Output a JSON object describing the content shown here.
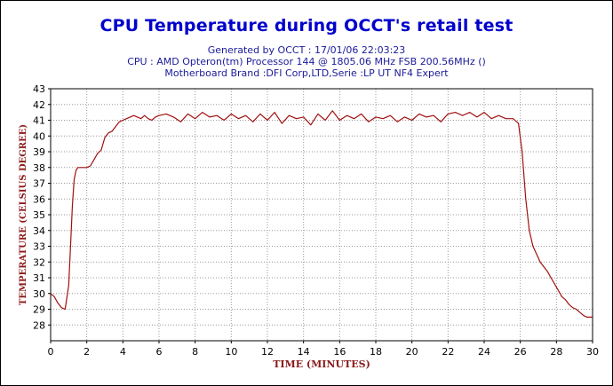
{
  "title": "CPU Temperature during OCCT's retail test",
  "subtitle_lines": [
    "Generated by OCCT : 17/01/06 22:03:23",
    "CPU : AMD Opteron(tm) Processor 144    @ 1805.06 MHz FSB 200.56MHz ()",
    "Motherboard Brand :DFI Corp,LTD,Serie :LP UT NF4 Expert"
  ],
  "colors": {
    "title": "#0000cc",
    "subtitle": "#1a1a99",
    "axis_label": "#8b1a1a",
    "line": "#a01010",
    "grid": "#999999"
  },
  "chart_data": {
    "type": "line",
    "title": "CPU Temperature during OCCT's retail test",
    "xlabel": "TIME (MINUTES)",
    "ylabel": "TEMPERATURE (CELSIUS DEGREE)",
    "xlim": [
      0,
      30
    ],
    "ylim": [
      27,
      43
    ],
    "xticks": [
      0,
      2,
      4,
      6,
      8,
      10,
      12,
      14,
      16,
      18,
      20,
      22,
      24,
      26,
      28,
      30
    ],
    "yticks": [
      28,
      29,
      30,
      31,
      32,
      33,
      34,
      35,
      36,
      37,
      38,
      39,
      40,
      41,
      42,
      43
    ],
    "grid": true,
    "grid_style": "dotted",
    "series": [
      {
        "x": [
          0,
          0.2,
          0.4,
          0.6,
          0.8,
          1.0,
          1.1,
          1.2,
          1.3,
          1.4,
          1.5,
          1.6,
          1.8,
          2.0,
          2.2,
          2.4,
          2.6,
          2.8,
          3.0,
          3.2,
          3.4,
          3.6,
          3.8,
          4.0,
          4.2,
          4.4,
          4.6,
          4.8,
          5.0,
          5.2,
          5.4,
          5.6,
          5.8,
          6.0,
          6.4,
          6.8,
          7.2,
          7.6,
          8.0,
          8.4,
          8.8,
          9.2,
          9.6,
          10.0,
          10.4,
          10.8,
          11.2,
          11.6,
          12.0,
          12.4,
          12.8,
          13.2,
          13.6,
          14.0,
          14.4,
          14.8,
          15.2,
          15.6,
          16.0,
          16.4,
          16.8,
          17.2,
          17.6,
          18.0,
          18.4,
          18.8,
          19.2,
          19.6,
          20.0,
          20.4,
          20.8,
          21.2,
          21.6,
          22.0,
          22.4,
          22.8,
          23.2,
          23.6,
          24.0,
          24.4,
          24.8,
          25.2,
          25.6,
          25.9,
          26.1,
          26.3,
          26.5,
          26.7,
          26.9,
          27.1,
          27.3,
          27.5,
          27.7,
          27.9,
          28.1,
          28.3,
          28.5,
          28.7,
          28.9,
          29.1,
          29.3,
          29.5,
          29.7,
          30.0
        ],
        "y": [
          30.0,
          29.8,
          29.4,
          29.1,
          29.0,
          30.5,
          33.0,
          35.5,
          37.2,
          37.8,
          38.0,
          38.0,
          38.0,
          38.0,
          38.1,
          38.5,
          38.9,
          39.1,
          39.9,
          40.2,
          40.3,
          40.6,
          40.9,
          41.0,
          41.1,
          41.2,
          41.3,
          41.2,
          41.1,
          41.3,
          41.1,
          41.0,
          41.2,
          41.3,
          41.4,
          41.2,
          40.9,
          41.4,
          41.1,
          41.5,
          41.2,
          41.3,
          41.0,
          41.4,
          41.1,
          41.3,
          40.9,
          41.4,
          41.0,
          41.5,
          40.8,
          41.3,
          41.1,
          41.2,
          40.7,
          41.4,
          41.0,
          41.6,
          41.0,
          41.3,
          41.1,
          41.4,
          40.9,
          41.2,
          41.1,
          41.3,
          40.9,
          41.2,
          41.0,
          41.4,
          41.2,
          41.3,
          40.9,
          41.4,
          41.5,
          41.3,
          41.5,
          41.2,
          41.5,
          41.1,
          41.3,
          41.1,
          41.1,
          40.8,
          39.0,
          36.0,
          34.0,
          33.0,
          32.5,
          32.0,
          31.7,
          31.4,
          31.0,
          30.6,
          30.2,
          29.8,
          29.6,
          29.3,
          29.1,
          29.0,
          28.8,
          28.6,
          28.5,
          28.5
        ]
      }
    ]
  }
}
